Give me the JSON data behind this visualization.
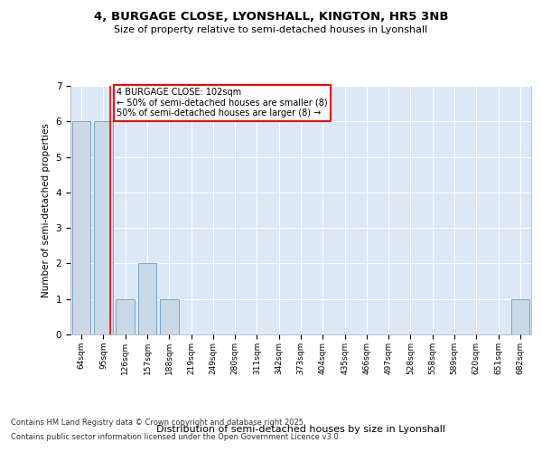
{
  "title": "4, BURGAGE CLOSE, LYONSHALL, KINGTON, HR5 3NB",
  "subtitle": "Size of property relative to semi-detached houses in Lyonshall",
  "xlabel": "Distribution of semi-detached houses by size in Lyonshall",
  "ylabel": "Number of semi-detached properties",
  "categories": [
    "64sqm",
    "95sqm",
    "126sqm",
    "157sqm",
    "188sqm",
    "219sqm",
    "249sqm",
    "280sqm",
    "311sqm",
    "342sqm",
    "373sqm",
    "404sqm",
    "435sqm",
    "466sqm",
    "497sqm",
    "528sqm",
    "558sqm",
    "589sqm",
    "620sqm",
    "651sqm",
    "682sqm"
  ],
  "values": [
    6,
    6,
    1,
    2,
    1,
    0,
    0,
    0,
    0,
    0,
    0,
    0,
    0,
    0,
    0,
    0,
    0,
    0,
    0,
    0,
    1
  ],
  "bar_color": "#c9d9e8",
  "bar_edge_color": "#5b8db8",
  "background_color": "#dce8f5",
  "property_line_x": 1.3,
  "annotation_text": "4 BURGAGE CLOSE: 102sqm\n← 50% of semi-detached houses are smaller (8)\n50% of semi-detached houses are larger (8) →",
  "footnote1": "Contains HM Land Registry data © Crown copyright and database right 2025.",
  "footnote2": "Contains public sector information licensed under the Open Government Licence v3.0.",
  "ylim": [
    0,
    7
  ],
  "yticks": [
    0,
    1,
    2,
    3,
    4,
    5,
    6,
    7
  ]
}
